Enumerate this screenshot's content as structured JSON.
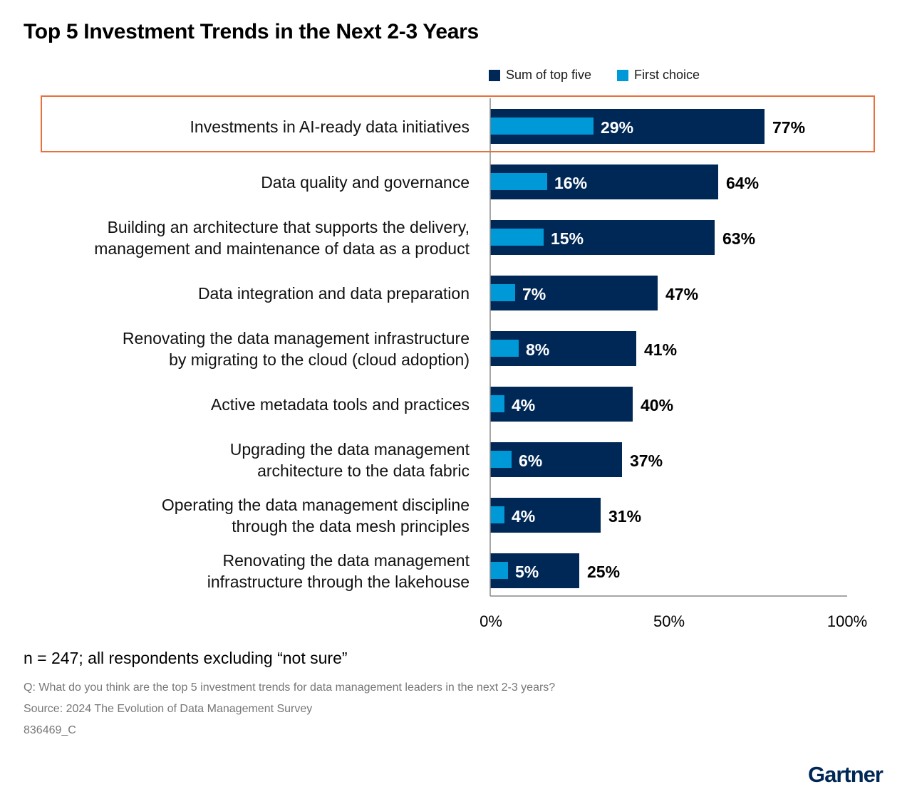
{
  "chart_data": {
    "type": "bar",
    "orientation": "horizontal",
    "title": "Top 5 Investment Trends in the Next 2-3 Years",
    "categories": [
      [
        "Investments in AI-ready data initiatives"
      ],
      [
        "Data quality and governance"
      ],
      [
        "Building an architecture that supports the delivery,",
        "management and maintenance of data as a product"
      ],
      [
        "Data integration and data preparation"
      ],
      [
        "Renovating the data management infrastructure",
        "by migrating to the cloud (cloud adoption)"
      ],
      [
        "Active metadata tools and practices"
      ],
      [
        "Upgrading the data management",
        "architecture to the data fabric"
      ],
      [
        "Operating the data management discipline",
        "through the data mesh principles"
      ],
      [
        "Renovating the data management",
        "infrastructure through the lakehouse"
      ]
    ],
    "series": [
      {
        "name": "Sum of top five",
        "color": "#002856",
        "values": [
          77,
          64,
          63,
          47,
          41,
          40,
          37,
          31,
          25
        ]
      },
      {
        "name": "First choice",
        "color": "#0099D8",
        "values": [
          29,
          16,
          15,
          7,
          8,
          4,
          6,
          4,
          5
        ]
      }
    ],
    "xlim": [
      0,
      100
    ],
    "xticks": [
      "0%",
      "50%",
      "100%"
    ],
    "value_suffix": "%",
    "highlighted_category_index": 0,
    "highlight_color": "#E8703A",
    "legend_position": "top-right",
    "grid": false
  },
  "note": "n = 247; all respondents excluding “not sure”",
  "question": "Q: What do you think are the top 5 investment trends for data management leaders in the next 2-3 years?",
  "source": "Source: 2024 The Evolution of Data Management Survey",
  "code": "836469_C",
  "logo": "Gartner"
}
